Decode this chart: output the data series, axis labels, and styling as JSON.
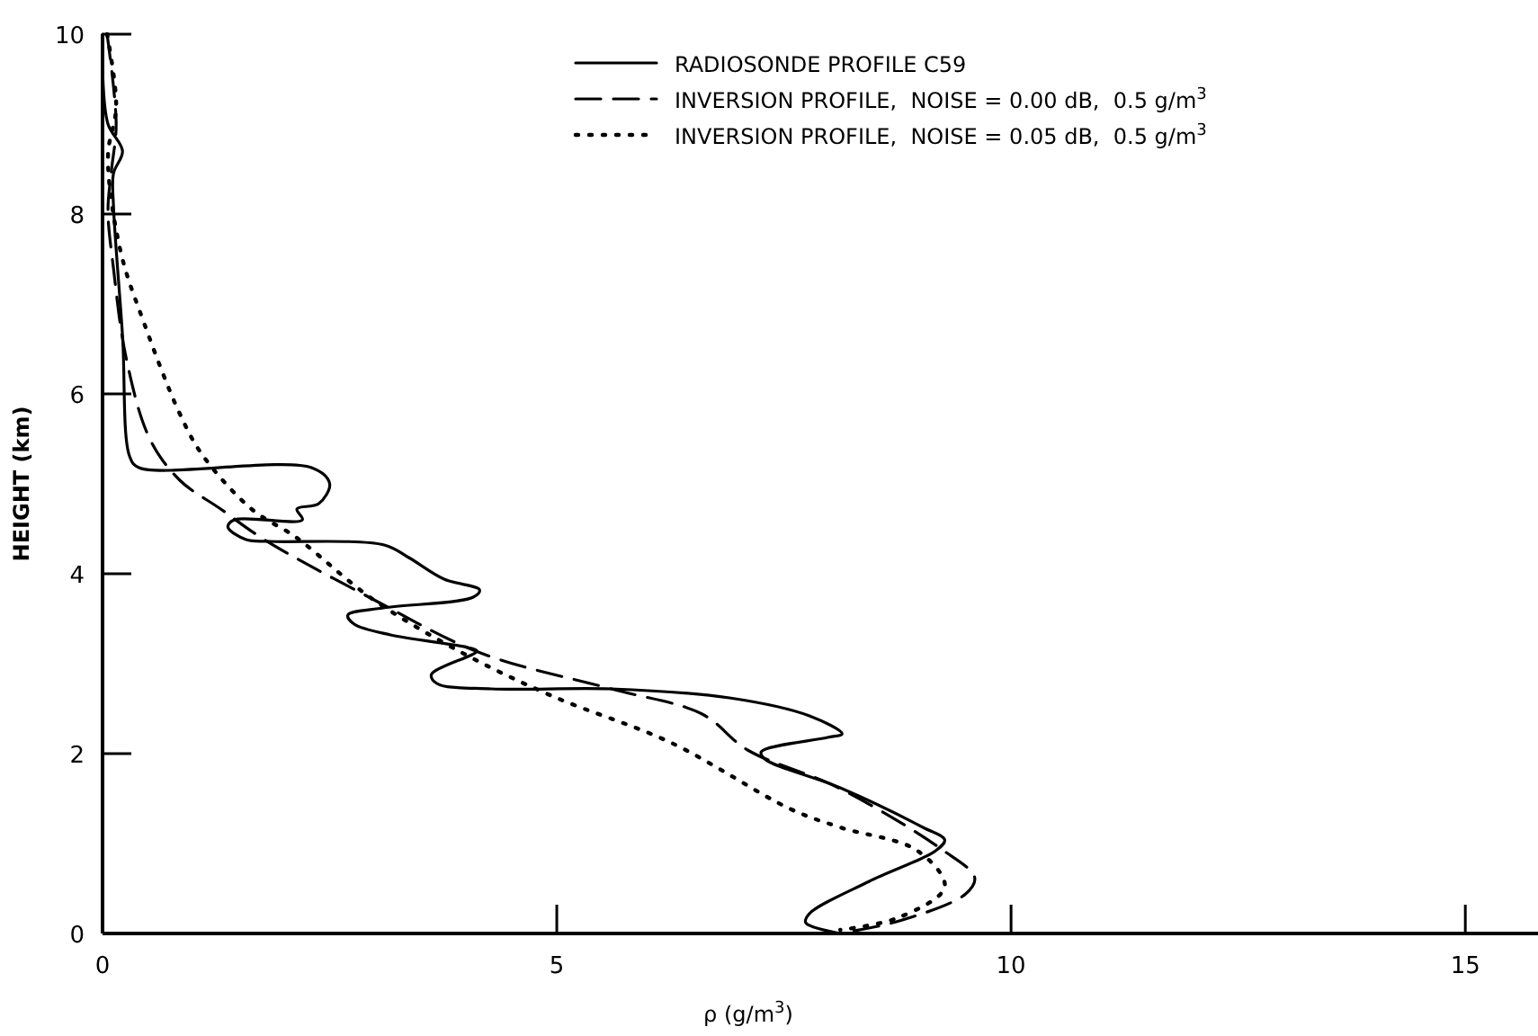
{
  "chart_data": {
    "type": "line",
    "xlabel": "ρ (g/m$^{3}$)",
    "ylabel": "HEIGHT (km)",
    "xlim": [
      0,
      15.8
    ],
    "ylim": [
      0,
      10
    ],
    "xticks": [
      0,
      5,
      10,
      15
    ],
    "yticks": [
      0,
      2,
      4,
      6,
      8,
      10
    ],
    "legend": "top right",
    "grid": false,
    "marker": "none",
    "series": [
      {
        "name": "RADIOSONDE PROFILE C59",
        "color": "#000000",
        "line_style": "solid",
        "x": [
          0,
          0,
          0.06,
          0.22,
          0.12,
          0.12,
          0.22,
          0.3,
          0.4,
          2.3,
          2.5,
          2.38,
          2.14,
          2.2,
          1.45,
          1.38,
          1.58,
          1.84,
          3.1,
          3.37,
          3.76,
          4.15,
          4.08,
          3.09,
          2.7,
          2.77,
          3.17,
          4.02,
          4.12,
          3.62,
          3.68,
          4.28,
          5.6,
          6.9,
          7.78,
          8.14,
          7.98,
          7.25,
          7.29,
          8.12,
          9.03,
          9.27,
          9.17,
          8.44,
          7.78,
          7.74,
          8.12
        ],
        "values": [
          10,
          9.6,
          9.0,
          8.7,
          8.45,
          8.1,
          6.65,
          5.3,
          5.18,
          5.18,
          5.0,
          4.78,
          4.72,
          4.6,
          4.6,
          4.52,
          4.38,
          4.36,
          4.32,
          4.18,
          3.94,
          3.82,
          3.74,
          3.62,
          3.54,
          3.44,
          3.32,
          3.18,
          3.14,
          2.88,
          2.78,
          2.72,
          2.72,
          2.62,
          2.42,
          2.22,
          2.18,
          2.02,
          1.94,
          1.62,
          1.18,
          1.04,
          0.92,
          0.58,
          0.22,
          0.12,
          0
        ]
      },
      {
        "name": "INVERSION PROFILE,  NOISE = 0.00 dB,  0.5 g/m$^{3}$",
        "color": "#000000",
        "line_style": "dashed",
        "x": [
          0.05,
          0.15,
          0.1,
          0.06,
          0.12,
          0.26,
          0.52,
          0.85,
          1.3,
          1.78,
          2.97,
          4.16,
          5.6,
          6.6,
          7.1,
          8.1,
          9.23,
          9.6,
          9.5,
          8.77,
          8.1
        ],
        "values": [
          10,
          9.0,
          8.5,
          8.04,
          7.4,
          6.4,
          5.5,
          5.04,
          4.72,
          4.38,
          3.72,
          3.12,
          2.72,
          2.44,
          2.04,
          1.62,
          0.94,
          0.62,
          0.44,
          0.14,
          0
        ]
      },
      {
        "name": "INVERSION PROFILE,  NOISE = 0.05 dB,  0.5 g/m$^{3}$",
        "color": "#000000",
        "line_style": "dotted",
        "x": [
          0.05,
          0.15,
          0.06,
          0.2,
          0.46,
          0.85,
          1.1,
          1.64,
          2.08,
          2.24,
          2.97,
          3.96,
          4.95,
          6.26,
          7.58,
          8.12,
          8.97,
          9.27,
          8.77,
          8.12
        ],
        "values": [
          10,
          9.2,
          8.64,
          7.58,
          6.78,
          5.78,
          5.32,
          4.72,
          4.44,
          4.32,
          3.72,
          3.12,
          2.64,
          2.12,
          1.38,
          1.18,
          0.92,
          0.52,
          0.18,
          0.04
        ]
      }
    ]
  }
}
